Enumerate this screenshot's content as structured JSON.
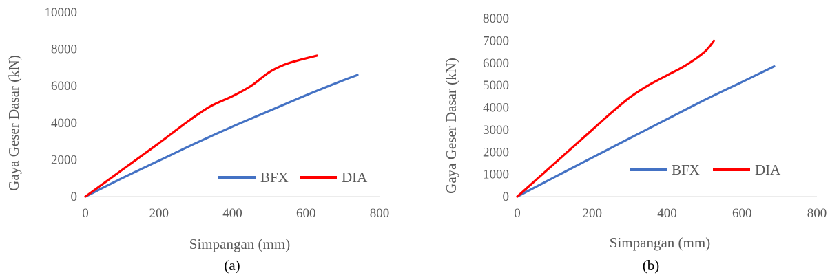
{
  "chart_data": [
    {
      "type": "line",
      "caption": "(a)",
      "xlabel": "Simpangan (mm)",
      "ylabel": "Gaya Geser Dasar (kN)",
      "xlim": [
        0,
        800
      ],
      "ylim": [
        0,
        10000
      ],
      "xticks": [
        0,
        200,
        400,
        600,
        800
      ],
      "yticks": [
        0,
        2000,
        4000,
        6000,
        8000,
        10000
      ],
      "grid": false,
      "legend_position": "bottom-right",
      "series": [
        {
          "name": "BFX",
          "color": "#4472C4",
          "points": [
            [
              0,
              0
            ],
            [
              100,
              1000
            ],
            [
              200,
              1950
            ],
            [
              300,
              2900
            ],
            [
              400,
              3800
            ],
            [
              500,
              4650
            ],
            [
              600,
              5500
            ],
            [
              700,
              6300
            ],
            [
              740,
              6600
            ]
          ]
        },
        {
          "name": "DIA",
          "color": "#FF0000",
          "points": [
            [
              0,
              0
            ],
            [
              100,
              1450
            ],
            [
              200,
              2900
            ],
            [
              280,
              4100
            ],
            [
              340,
              4900
            ],
            [
              400,
              5450
            ],
            [
              450,
              6000
            ],
            [
              500,
              6750
            ],
            [
              540,
              7150
            ],
            [
              580,
              7400
            ],
            [
              630,
              7650
            ]
          ]
        }
      ]
    },
    {
      "type": "line",
      "caption": "(b)",
      "xlabel": "Simpangan (mm)",
      "ylabel": "Gaya Geser Dasar (kN)",
      "xlim": [
        0,
        800
      ],
      "ylim": [
        0,
        8000
      ],
      "xticks": [
        0,
        200,
        400,
        600,
        800
      ],
      "yticks": [
        0,
        1000,
        2000,
        3000,
        4000,
        5000,
        6000,
        7000,
        8000
      ],
      "grid": false,
      "legend_position": "bottom-right",
      "series": [
        {
          "name": "BFX",
          "color": "#4472C4",
          "points": [
            [
              0,
              0
            ],
            [
              100,
              880
            ],
            [
              200,
              1750
            ],
            [
              300,
              2620
            ],
            [
              400,
              3480
            ],
            [
              500,
              4340
            ],
            [
              600,
              5150
            ],
            [
              686,
              5850
            ]
          ]
        },
        {
          "name": "DIA",
          "color": "#FF0000",
          "points": [
            [
              0,
              0
            ],
            [
              100,
              1500
            ],
            [
              200,
              3000
            ],
            [
              250,
              3750
            ],
            [
              300,
              4450
            ],
            [
              350,
              5000
            ],
            [
              400,
              5450
            ],
            [
              450,
              5900
            ],
            [
              500,
              6500
            ],
            [
              525,
              7000
            ]
          ]
        }
      ]
    }
  ]
}
